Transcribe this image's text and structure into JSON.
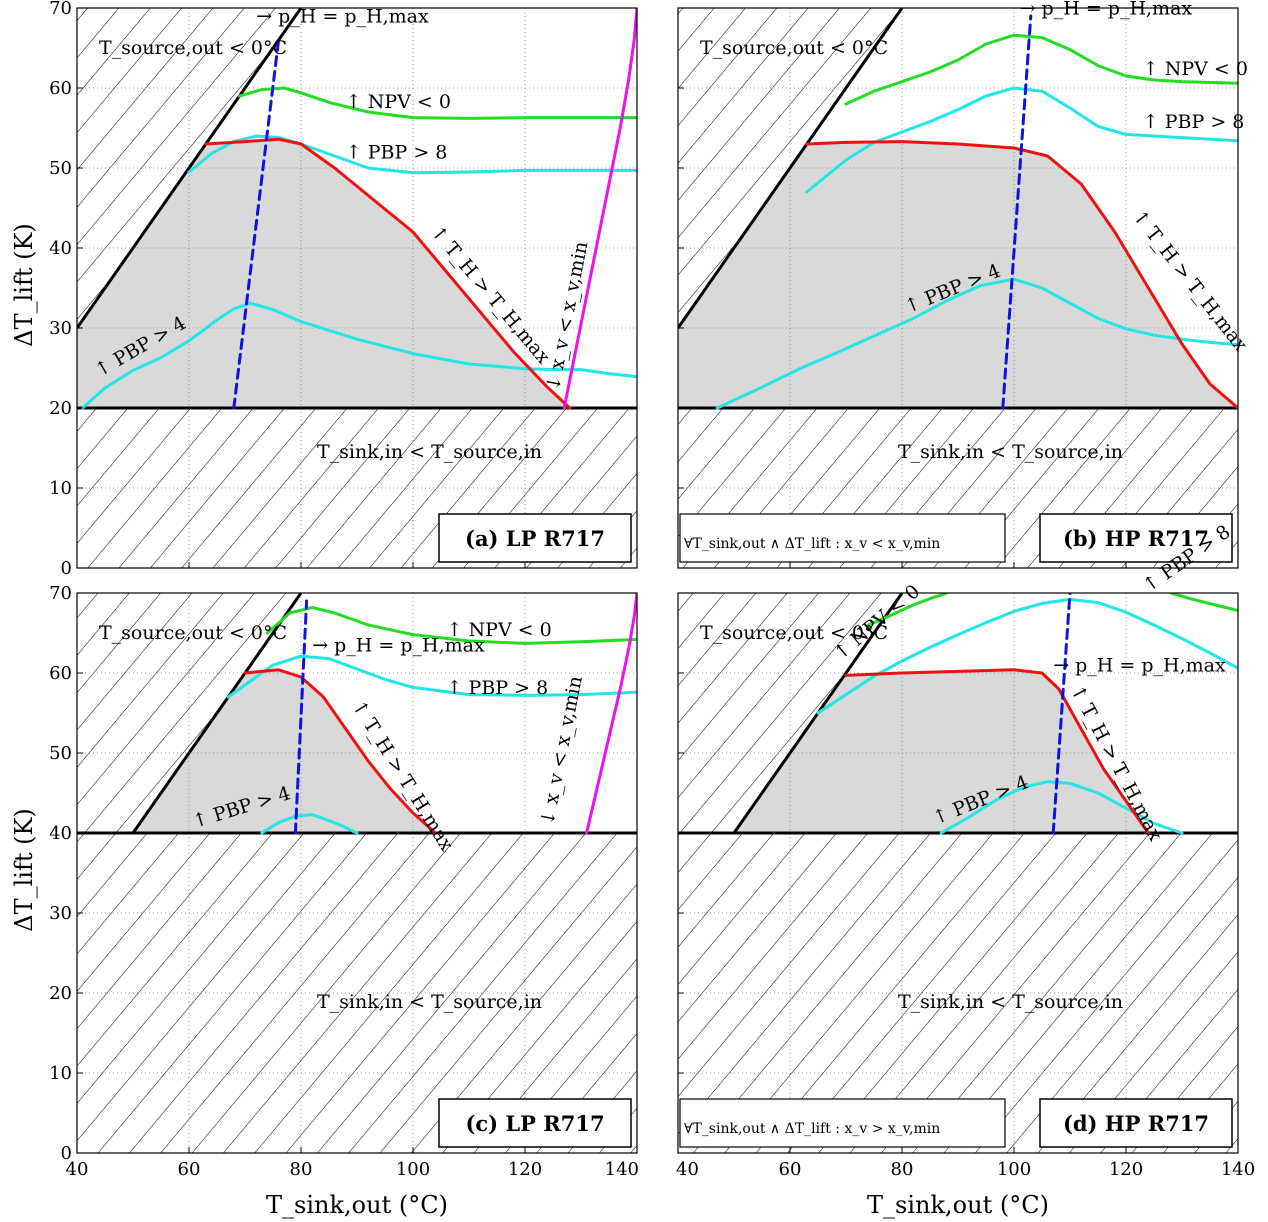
{
  "figure": {
    "xlabel": "T_sink,out (°C)",
    "ylabel": "ΔT_lift (K)"
  },
  "chart_data": [
    {
      "type": "line",
      "panel": "a",
      "title": "(a) LP R717",
      "xlim": [
        40,
        140
      ],
      "ylim": [
        0,
        70
      ],
      "xticks": [
        40,
        60,
        80,
        100,
        120,
        140
      ],
      "yticks": [
        0,
        10,
        20,
        30,
        40,
        50,
        60,
        70
      ],
      "grid": true,
      "min_lift": 20,
      "hatch_top": {
        "x0": 40,
        "y0": 30,
        "slope": 1.0
      },
      "feasible_region": [
        [
          40,
          20
        ],
        [
          40,
          30
        ],
        [
          63,
          53
        ],
        [
          70,
          53.4
        ],
        [
          76,
          53.6
        ],
        [
          80,
          53
        ],
        [
          86,
          50
        ],
        [
          93,
          46
        ],
        [
          100,
          42
        ],
        [
          106,
          37
        ],
        [
          112,
          32
        ],
        [
          118,
          27
        ],
        [
          124,
          22.5
        ],
        [
          128,
          20
        ]
      ],
      "annotations": {
        "source_out": "T_source,out < 0°C",
        "sink_in": "T_sink,in < T_source,in",
        "pmax": "→ p_H = p_H,max",
        "npv": "↑ NPV < 0",
        "pbp8": "↑ PBP > 8",
        "pbp4": "↑ PBP > 4",
        "thmax": "↑ T_H > T_H,max",
        "xv": "↓ x_v < x_v,min"
      },
      "series": [
        {
          "key": "npv",
          "color": "#22dd22",
          "x": [
            69,
            73,
            77,
            80,
            85,
            92,
            100,
            110,
            120,
            130,
            140
          ],
          "y": [
            59,
            59.8,
            60,
            59.4,
            58.2,
            57,
            56.3,
            56.2,
            56.3,
            56.3,
            56.3
          ]
        },
        {
          "key": "pbp8",
          "color": "#22e5e5",
          "x": [
            60,
            64,
            68,
            72,
            76,
            80,
            86,
            92,
            100,
            110,
            120,
            130,
            140
          ],
          "y": [
            49.5,
            51.8,
            53.3,
            54,
            53.8,
            53,
            51.5,
            50,
            49.4,
            49.5,
            49.7,
            49.7,
            49.7
          ]
        },
        {
          "key": "pbp4",
          "color": "#22e5e5",
          "x": [
            41,
            45,
            50,
            55,
            60,
            65,
            68,
            71,
            75,
            80,
            90,
            100,
            110,
            120,
            126,
            130,
            135,
            140
          ],
          "y": [
            20,
            22.5,
            24.7,
            26.3,
            28.4,
            31,
            32.4,
            33.1,
            32.3,
            30.8,
            28.6,
            26.8,
            25.5,
            24.9,
            24.8,
            24.8,
            24.3,
            23.9
          ]
        },
        {
          "key": "thmax",
          "color": "#ee1111",
          "x": [
            63,
            70,
            76,
            80,
            86,
            93,
            100,
            106,
            112,
            118,
            124,
            128
          ],
          "y": [
            53,
            53.3,
            53.6,
            53,
            50,
            46,
            42,
            37,
            32,
            27,
            22.6,
            20
          ]
        },
        {
          "key": "pmax",
          "color": "#1111dd",
          "dashed": true,
          "x": [
            68,
            76
          ],
          "y": [
            20,
            66
          ]
        },
        {
          "key": "xv",
          "color": "#ee11ee",
          "x": [
            127,
            129,
            131,
            133,
            135,
            137,
            138.5,
            139.5,
            140
          ],
          "y": [
            20,
            27,
            34,
            41,
            48,
            55,
            61,
            66,
            70
          ]
        }
      ]
    },
    {
      "type": "line",
      "panel": "b",
      "title": "(b) HP R717",
      "xlim": [
        40,
        140
      ],
      "ylim": [
        0,
        70
      ],
      "xticks": [
        40,
        60,
        80,
        100,
        120,
        140
      ],
      "yticks": [
        0,
        10,
        20,
        30,
        40,
        50,
        60,
        70
      ],
      "grid": true,
      "min_lift": 20,
      "hatch_top": {
        "x0": 40,
        "y0": 30,
        "slope": 1.0
      },
      "feasible_region": [
        [
          40,
          20
        ],
        [
          40,
          30
        ],
        [
          63,
          53
        ],
        [
          70,
          53.2
        ],
        [
          80,
          53.3
        ],
        [
          90,
          53
        ],
        [
          100,
          52.5
        ],
        [
          106,
          51.5
        ],
        [
          112,
          48
        ],
        [
          118,
          42
        ],
        [
          124,
          35
        ],
        [
          130,
          28
        ],
        [
          135,
          23
        ],
        [
          140,
          20
        ]
      ],
      "annotations": {
        "source_out": "T_source,out < 0°C",
        "sink_in": "T_sink,in < T_source,in",
        "pmax": "→ p_H = p_H,max",
        "npv": "↑ NPV < 0",
        "pbp8": "↑ PBP > 8",
        "pbp4": "↑ PBP > 4",
        "thmax": "↑ T_H > T_H,max",
        "note": "∀T_sink,out ∧ ΔT_lift : x_v < x_v,min"
      },
      "series": [
        {
          "key": "npv",
          "color": "#22dd22",
          "x": [
            70,
            75,
            80,
            85,
            90,
            95,
            100,
            105,
            110,
            115,
            120,
            125,
            130,
            140
          ],
          "y": [
            58,
            59.6,
            60.8,
            62,
            63.5,
            65.5,
            66.6,
            66.3,
            64.8,
            62.8,
            61.5,
            61,
            60.8,
            60.6
          ]
        },
        {
          "key": "pbp8",
          "color": "#22e5e5",
          "x": [
            63,
            70,
            75,
            80,
            85,
            90,
            95,
            100,
            105,
            110,
            115,
            120,
            130,
            140
          ],
          "y": [
            47,
            51,
            53.2,
            54.5,
            55.8,
            57.3,
            59,
            60,
            59.6,
            57.5,
            55.2,
            54.2,
            53.8,
            53.4
          ]
        },
        {
          "key": "pbp4",
          "color": "#22e5e5",
          "x": [
            47,
            55,
            62,
            68,
            75,
            82,
            88,
            94,
            100,
            105,
            110,
            115,
            120,
            125,
            130,
            135,
            140
          ],
          "y": [
            20,
            22.6,
            25,
            26.8,
            29,
            31.2,
            33.4,
            35.3,
            36.1,
            35,
            33.1,
            31.2,
            29.9,
            29.1,
            28.6,
            28.2,
            27.9
          ]
        },
        {
          "key": "thmax",
          "color": "#ee1111",
          "x": [
            63,
            70,
            80,
            90,
            100,
            106,
            112,
            118,
            124,
            130,
            135,
            140
          ],
          "y": [
            53,
            53.2,
            53.3,
            53,
            52.5,
            51.5,
            48,
            42,
            35,
            28,
            23,
            20
          ]
        },
        {
          "key": "pmax",
          "color": "#1111dd",
          "dashed": true,
          "x": [
            98,
            103
          ],
          "y": [
            20,
            69
          ]
        }
      ]
    },
    {
      "type": "line",
      "panel": "c",
      "title": "(c) LP R717",
      "xlim": [
        40,
        140
      ],
      "ylim": [
        0,
        70
      ],
      "xticks": [
        40,
        60,
        80,
        100,
        120,
        140
      ],
      "yticks": [
        0,
        10,
        20,
        30,
        40,
        50,
        60,
        70
      ],
      "grid": true,
      "min_lift": 40,
      "hatch_top": {
        "x0": 50,
        "y0": 40,
        "slope": 1.0
      },
      "feasible_region": [
        [
          50,
          40
        ],
        [
          70,
          60
        ],
        [
          76,
          60.3
        ],
        [
          80,
          59.5
        ],
        [
          84,
          57
        ],
        [
          88,
          53
        ],
        [
          92,
          49
        ],
        [
          96,
          45.5
        ],
        [
          100,
          42.5
        ],
        [
          104,
          40
        ]
      ],
      "annotations": {
        "source_out": "T_source,out < 0°C",
        "sink_in": "T_sink,in < T_source,in",
        "pmax": "→ p_H = p_H,max",
        "npv": "↑ NPV < 0",
        "pbp8": "↑ PBP > 8",
        "pbp4": "↑ PBP > 4",
        "thmax": "↑ T_H > T_H,max",
        "xv": "↓ x_v < x_v,min"
      },
      "series": [
        {
          "key": "npv",
          "color": "#22dd22",
          "x": [
            74,
            78,
            82,
            86,
            92,
            100,
            110,
            120,
            130,
            140
          ],
          "y": [
            65,
            67.5,
            68.2,
            67.5,
            66,
            64.8,
            64,
            63.7,
            63.9,
            64.2
          ]
        },
        {
          "key": "pbp8",
          "color": "#22e5e5",
          "x": [
            67,
            71,
            75,
            80,
            85,
            90,
            95,
            100,
            110,
            120,
            130,
            140
          ],
          "y": [
            57,
            59,
            61,
            62.1,
            61.8,
            60.5,
            59.2,
            58.2,
            57.3,
            57.2,
            57.3,
            57.6
          ]
        },
        {
          "key": "pbp4",
          "color": "#22e5e5",
          "x": [
            73,
            76,
            79,
            82,
            84,
            87,
            90
          ],
          "y": [
            40,
            41.3,
            42.1,
            42.3,
            41.8,
            41,
            40
          ]
        },
        {
          "key": "thmax",
          "color": "#ee1111",
          "x": [
            70,
            76,
            80,
            84,
            88,
            92,
            96,
            100,
            104
          ],
          "y": [
            60,
            60.4,
            59.5,
            57,
            53,
            49,
            45.5,
            42.5,
            40
          ]
        },
        {
          "key": "pmax",
          "color": "#1111dd",
          "dashed": true,
          "x": [
            79,
            81
          ],
          "y": [
            40,
            69
          ]
        },
        {
          "key": "xv",
          "color": "#ee11ee",
          "x": [
            131,
            133,
            135,
            137,
            138.5,
            139.5,
            140
          ],
          "y": [
            40,
            46,
            52,
            58,
            63,
            67,
            70
          ]
        }
      ]
    },
    {
      "type": "line",
      "panel": "d",
      "title": "(d) HP R717",
      "xlim": [
        40,
        140
      ],
      "ylim": [
        0,
        70
      ],
      "xticks": [
        40,
        60,
        80,
        100,
        120,
        140
      ],
      "yticks": [
        0,
        10,
        20,
        30,
        40,
        50,
        60,
        70
      ],
      "grid": true,
      "min_lift": 40,
      "hatch_top": {
        "x0": 50,
        "y0": 40,
        "slope": 1.0
      },
      "feasible_region": [
        [
          50,
          40
        ],
        [
          70,
          59.7
        ],
        [
          80,
          60
        ],
        [
          90,
          60.2
        ],
        [
          100,
          60.4
        ],
        [
          105,
          60
        ],
        [
          108,
          58
        ],
        [
          112,
          53
        ],
        [
          116,
          48
        ],
        [
          120,
          44
        ],
        [
          124,
          40
        ]
      ],
      "annotations": {
        "source_out": "T_source,out < 0°C",
        "sink_in": "T_sink,in < T_source,in",
        "pmax": "→ p_H = p_H,max",
        "npv": "↑ NPV < 0",
        "pbp8": "↑ PBP > 8",
        "pbp4": "↑ PBP > 4",
        "thmax": "↑ T_H > T_H,max",
        "note": "∀T_sink,out ∧ ΔT_lift : x_v > x_v,min"
      },
      "series": [
        {
          "key": "npv",
          "color": "#22dd22",
          "x": [
            74,
            78,
            82,
            85,
            88
          ],
          "y": [
            66,
            67.2,
            68.5,
            69.3,
            70
          ]
        },
        {
          "key": "npv2",
          "color": "#22dd22",
          "x": [
            128,
            132,
            136,
            140
          ],
          "y": [
            70,
            69.2,
            68.5,
            67.8
          ]
        },
        {
          "key": "pbp8",
          "color": "#22e5e5",
          "x": [
            65,
            70,
            75,
            80,
            85,
            90,
            95,
            100,
            105,
            110,
            115,
            120,
            125,
            130,
            135,
            140
          ],
          "y": [
            55,
            57.3,
            59.6,
            61.5,
            63.2,
            64.8,
            66.3,
            67.7,
            68.7,
            69.2,
            68.8,
            67.6,
            66,
            64.3,
            62.5,
            60.6
          ]
        },
        {
          "key": "pbp4",
          "color": "#22e5e5",
          "x": [
            87,
            92,
            97,
            102,
            106,
            110,
            115,
            120,
            125,
            130
          ],
          "y": [
            40,
            42,
            44.2,
            45.8,
            46.4,
            46.2,
            45,
            43.1,
            41.2,
            40
          ]
        },
        {
          "key": "thmax",
          "color": "#ee1111",
          "x": [
            70,
            80,
            90,
            100,
            105,
            108,
            112,
            116,
            120,
            124
          ],
          "y": [
            59.7,
            60,
            60.2,
            60.4,
            60,
            58,
            53,
            48,
            44,
            40
          ]
        },
        {
          "key": "pmax",
          "color": "#1111dd",
          "dashed": true,
          "x": [
            107,
            110
          ],
          "y": [
            40,
            70
          ]
        }
      ]
    }
  ]
}
